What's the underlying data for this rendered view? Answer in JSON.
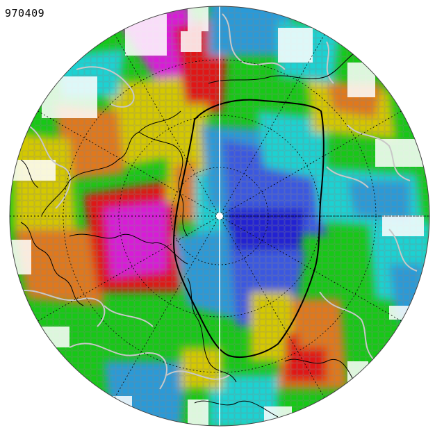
{
  "map": {
    "label": "970409",
    "palette": {
      "magenta": "#d81ad8",
      "red": "#e01818",
      "orange": "#e0781a",
      "yellow": "#d4c800",
      "green": "#16c816",
      "cyan": "#1ed2d2",
      "light_blue": "#2c9ad8",
      "blue": "#3a58e0",
      "dark_blue": "#2020d2",
      "grid_line": "#888888",
      "contour_gray": "#c8c8c8",
      "coastline": "#000000",
      "missing": "#ffffff"
    }
  }
}
